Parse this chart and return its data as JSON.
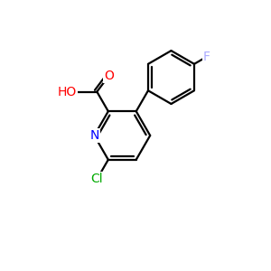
{
  "background_color": "#ffffff",
  "bond_color": "#000000",
  "atom_colors": {
    "N": "#0000ff",
    "O": "#ff0000",
    "Cl": "#00aa00",
    "F": "#aaaaff",
    "C": "#000000",
    "H": "#000000"
  },
  "figsize": [
    3.0,
    3.0
  ],
  "dpi": 100,
  "lw": 1.6,
  "fontsize": 10
}
